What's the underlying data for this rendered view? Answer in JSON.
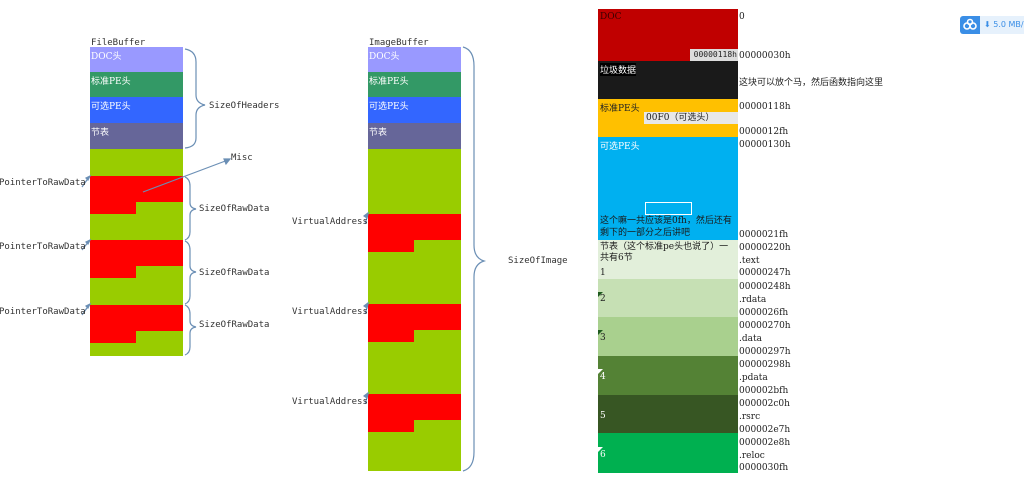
{
  "file_buffer": {
    "title": "FileBuffer",
    "headers": [
      "DOC头",
      "标准PE头",
      "可选PE头",
      "节表"
    ],
    "size_of_headers": "SizeOfHeaders",
    "misc": "Misc",
    "pointer_label": "PointerToRawData",
    "raw_label": "SizeOfRawData"
  },
  "image_buffer": {
    "title": "ImageBuffer",
    "headers": [
      "DOC头",
      "标准PE头",
      "可选PE头",
      "节表"
    ],
    "va_label": "VirtualAddress",
    "size_of_image": "SizeOfImage"
  },
  "pe_layout": {
    "doc_label": "DOC",
    "doc_box": "00000118h",
    "junk_label": "垃圾数据",
    "std_label": "标准PE头",
    "opt_box": "00F0（可选头）",
    "opt_label": "可选PE头",
    "opt_note": "这个嘛一共应该是0fh，然后还有剩下的一部分之后讲吧",
    "sect_note": "节表（这个标准pe头也说了）一共有6节",
    "numbers": [
      "1",
      "2",
      "3",
      "4",
      "5",
      "6"
    ],
    "right_labels": [
      "0",
      "00000030h",
      "这块可以放个马，然后函数指向这里",
      "00000118h",
      "0000012fh",
      "00000130h",
      "0000021fh",
      "00000220h",
      ".text",
      "00000247h",
      "00000248h",
      ".rdata",
      "0000026fh",
      "00000270h",
      ".data",
      "00000297h",
      "00000298h",
      ".pdata",
      "000002bfh",
      "000002c0h",
      ".rsrc",
      "000002e7h",
      "000002e8h",
      ".reloc",
      "0000030fh"
    ]
  },
  "badge": {
    "text": "5.0 MB/"
  },
  "colors": {
    "doc": "#9999ff",
    "std": "#339966",
    "opt": "#3366ff",
    "sect": "#666699",
    "green": "#99cc00",
    "red": "#ff0000",
    "line": "#6699cc",
    "dark_red": "#c00000",
    "black": "#1a1a1a",
    "amber": "#ffc000",
    "sky": "#00b0f0"
  }
}
